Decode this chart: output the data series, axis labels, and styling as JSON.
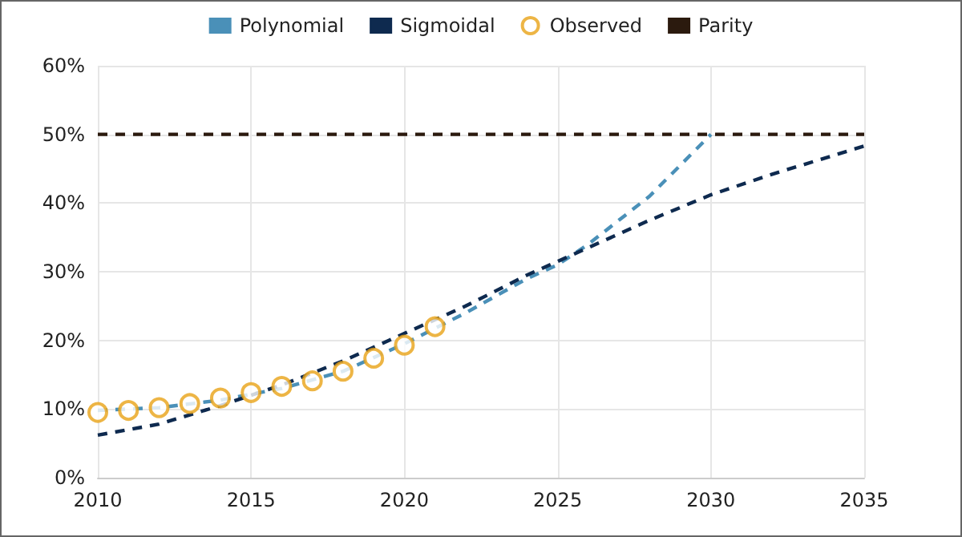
{
  "chart_data": {
    "type": "line",
    "legend": "top",
    "grid": true,
    "xlim": [
      2010,
      2035
    ],
    "xticks": [
      2010,
      2015,
      2020,
      2025,
      2030,
      2035
    ],
    "ylim": [
      0,
      60
    ],
    "yticks": [
      {
        "value": 0,
        "label": "0%"
      },
      {
        "value": 10,
        "label": "10%"
      },
      {
        "value": 20,
        "label": "20%"
      },
      {
        "value": 30,
        "label": "30%"
      },
      {
        "value": 40,
        "label": "40%"
      },
      {
        "value": 50,
        "label": "50%"
      },
      {
        "value": 60,
        "label": "60%"
      }
    ],
    "series": [
      {
        "name": "Polynomial",
        "color": "#4a90b8",
        "line_style": "dashed",
        "marker": "none",
        "x": [
          2010,
          2012,
          2014,
          2016,
          2018,
          2020,
          2022,
          2024,
          2025,
          2026,
          2028,
          2030
        ],
        "values": [
          9.8,
          10.2,
          11.3,
          13.0,
          15.5,
          19.5,
          24.0,
          29.0,
          31.0,
          34.0,
          41.0,
          50.0
        ]
      },
      {
        "name": "Sigmoidal",
        "color": "#0e2a4f",
        "line_style": "dashed",
        "marker": "none",
        "x": [
          2010,
          2012,
          2014,
          2016,
          2018,
          2020,
          2022,
          2024,
          2025,
          2026,
          2028,
          2030,
          2032,
          2035
        ],
        "values": [
          6.2,
          7.8,
          10.5,
          13.5,
          17.0,
          21.0,
          25.0,
          29.5,
          31.5,
          33.5,
          37.5,
          41.2,
          44.2,
          48.3
        ]
      },
      {
        "name": "Observed",
        "type": "scatter",
        "color": "#e8a317",
        "marker": "circle",
        "x": [
          2010,
          2011,
          2012,
          2013,
          2014,
          2015,
          2016,
          2017,
          2018,
          2019,
          2020,
          2021
        ],
        "values": [
          9.5,
          9.8,
          10.2,
          10.8,
          11.6,
          12.4,
          13.3,
          14.1,
          15.5,
          17.4,
          19.3,
          22.0
        ]
      },
      {
        "name": "Parity",
        "color": "#2b1a0e",
        "line_style": "dashed",
        "marker": "none",
        "x": [
          2010,
          2035
        ],
        "values": [
          50,
          50
        ]
      }
    ]
  }
}
